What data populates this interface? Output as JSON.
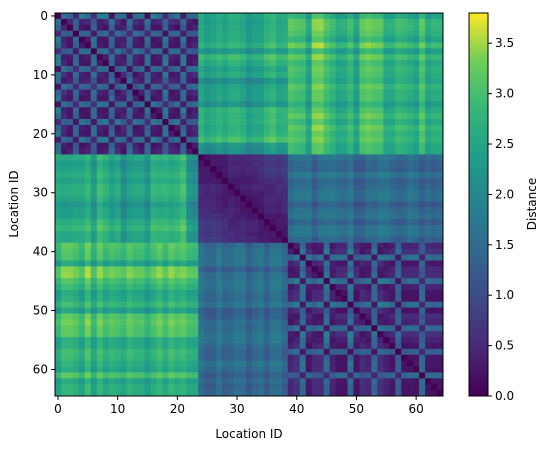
{
  "chart_data": {
    "type": "heatmap",
    "title": "",
    "xlabel": "Location ID",
    "ylabel": "Location ID",
    "n": 65,
    "x_ticks": [
      0,
      10,
      20,
      30,
      40,
      50,
      60
    ],
    "y_ticks": [
      0,
      10,
      20,
      30,
      40,
      50,
      60
    ],
    "colorbar": {
      "label": "Distance",
      "range": [
        0,
        3.8
      ],
      "ticks": [
        0.0,
        0.5,
        1.0,
        1.5,
        2.0,
        2.5,
        3.0,
        3.5
      ],
      "tick_labels": [
        "0.0",
        "0.5",
        "1.0",
        "1.5",
        "2.0",
        "2.5",
        "3.0",
        "3.5"
      ]
    },
    "colormap": "viridis",
    "clusters": [
      {
        "range": [
          0,
          23
        ]
      },
      {
        "range": [
          24,
          38
        ]
      },
      {
        "range": [
          39,
          64
        ]
      }
    ],
    "approx_distance_levels": {
      "within_cluster": "0.0-1.0",
      "cluster1_to_cluster2": "1.5-3.8",
      "cluster1_to_cluster3": "2.0-3.8",
      "cluster2_to_cluster3": "1.0-2.0"
    }
  }
}
